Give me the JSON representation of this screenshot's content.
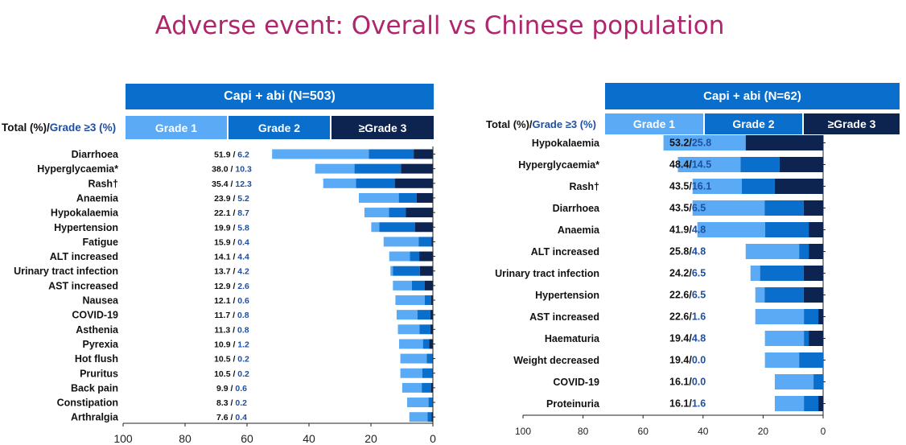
{
  "title": "Adverse event: Overall vs Chinese population",
  "colors": {
    "title": "#b0256e",
    "header_main": "#0a6fcc",
    "grade1": "#5aaaf5",
    "grade2": "#0a6fcc",
    "grade3": "#0d2450",
    "grade3_text": "#1f4fa3"
  },
  "left": {
    "header": "Capi + abi (N=503)",
    "total_label_prefix": "Total (%)/",
    "total_label_suffix": "Grade ≥3 (%)",
    "grade_labels": [
      "Grade 1",
      "Grade 2",
      "≥Grade 3"
    ]
  },
  "right": {
    "header": "Capi + abi (N=62)",
    "total_label_prefix": "Total (%)/",
    "total_label_suffix": "Grade ≥3 (%)",
    "grade_labels": [
      "Grade 1",
      "Grade 2",
      "≥Grade 3"
    ]
  },
  "chart_data": [
    {
      "type": "bar",
      "orientation": "horizontal-reversed",
      "title": "Capi + abi (N=503)",
      "xlim": [
        100,
        0
      ],
      "xticks": [
        "100",
        "80",
        "60",
        "40",
        "20",
        "0"
      ],
      "series": [
        {
          "name": "Grade 1"
        },
        {
          "name": "Grade 2"
        },
        {
          "name": "≥Grade 3"
        }
      ],
      "rows": [
        {
          "label": "Diarrhoea",
          "total": "51.9",
          "g3plus": "6.2",
          "t": 51.9,
          "g2": 14.5,
          "g3": 6.2
        },
        {
          "label": "Hyperglycaemia*",
          "total": "38.0",
          "g3plus": "10.3",
          "t": 38.0,
          "g2": 15.0,
          "g3": 10.3
        },
        {
          "label": "Rash†",
          "total": "35.4",
          "g3plus": "12.3",
          "t": 35.4,
          "g2": 12.5,
          "g3": 12.3
        },
        {
          "label": "Anaemia",
          "total": "23.9",
          "g3plus": "5.2",
          "t": 23.9,
          "g2": 5.8,
          "g3": 5.2
        },
        {
          "label": "Hypokalaemia",
          "total": "22.1",
          "g3plus": "8.7",
          "t": 22.1,
          "g2": 5.5,
          "g3": 8.7
        },
        {
          "label": "Hypertension",
          "total": "19.9",
          "g3plus": "5.8",
          "t": 19.9,
          "g2": 11.5,
          "g3": 5.8
        },
        {
          "label": "Fatigue",
          "total": "15.9",
          "g3plus": "0.4",
          "t": 15.9,
          "g2": 4.2,
          "g3": 0.4
        },
        {
          "label": "ALT increased",
          "total": "14.1",
          "g3plus": "4.4",
          "t": 14.1,
          "g2": 3.0,
          "g3": 4.4
        },
        {
          "label": "Urinary tract infection",
          "total": "13.7",
          "g3plus": "4.2",
          "t": 13.7,
          "g2": 8.7,
          "g3": 4.2
        },
        {
          "label": "AST increased",
          "total": "12.9",
          "g3plus": "2.6",
          "t": 12.9,
          "g2": 4.2,
          "g3": 2.6
        },
        {
          "label": "Nausea",
          "total": "12.1",
          "g3plus": "0.6",
          "t": 12.1,
          "g2": 2.0,
          "g3": 0.6
        },
        {
          "label": "COVID-19",
          "total": "11.7",
          "g3plus": "0.8",
          "t": 11.7,
          "g2": 4.2,
          "g3": 0.8
        },
        {
          "label": "Asthenia",
          "total": "11.3",
          "g3plus": "0.8",
          "t": 11.3,
          "g2": 3.5,
          "g3": 0.8
        },
        {
          "label": "Pyrexia",
          "total": "10.9",
          "g3plus": "1.2",
          "t": 10.9,
          "g2": 2.0,
          "g3": 1.2
        },
        {
          "label": "Hot flush",
          "total": "10.5",
          "g3plus": "0.2",
          "t": 10.5,
          "g2": 1.8,
          "g3": 0.2
        },
        {
          "label": "Pruritus",
          "total": "10.5",
          "g3plus": "0.2",
          "t": 10.5,
          "g2": 3.2,
          "g3": 0.2
        },
        {
          "label": "Back pain",
          "total": "9.9",
          "g3plus": "0.6",
          "t": 9.9,
          "g2": 3.0,
          "g3": 0.6
        },
        {
          "label": "Constipation",
          "total": "8.3",
          "g3plus": "0.2",
          "t": 8.3,
          "g2": 1.2,
          "g3": 0.2
        },
        {
          "label": "Arthralgia",
          "total": "7.6",
          "g3plus": "0.4",
          "t": 7.6,
          "g2": 1.3,
          "g3": 0.4
        }
      ]
    },
    {
      "type": "bar",
      "orientation": "horizontal-reversed",
      "title": "Capi + abi (N=62)",
      "xlim": [
        100,
        0
      ],
      "xticks": [
        "100",
        "80",
        "60",
        "40",
        "20",
        "0"
      ],
      "series": [
        {
          "name": "Grade 1"
        },
        {
          "name": "Grade 2"
        },
        {
          "name": "≥Grade 3"
        }
      ],
      "rows": [
        {
          "label": "Hypokalaemia",
          "total": "53.2",
          "g3plus": "25.8",
          "t": 53.2,
          "g2": 0.0,
          "g3": 25.8
        },
        {
          "label": "Hyperglycaemia*",
          "total": "48.4",
          "g3plus": "14.5",
          "t": 48.4,
          "g2": 13.0,
          "g3": 14.5
        },
        {
          "label": "Rash†",
          "total": "43.5",
          "g3plus": "16.1",
          "t": 43.5,
          "g2": 11.0,
          "g3": 16.1
        },
        {
          "label": "Diarrhoea",
          "total": "43.5",
          "g3plus": "6.5",
          "t": 43.5,
          "g2": 13.0,
          "g3": 6.5
        },
        {
          "label": "Anaemia",
          "total": "41.9",
          "g3plus": "4.8",
          "t": 41.9,
          "g2": 14.5,
          "g3": 4.8
        },
        {
          "label": "ALT increased",
          "total": "25.8",
          "g3plus": "4.8",
          "t": 25.8,
          "g2": 3.2,
          "g3": 4.8
        },
        {
          "label": "Urinary tract infection",
          "total": "24.2",
          "g3plus": "6.5",
          "t": 24.2,
          "g2": 14.5,
          "g3": 6.5
        },
        {
          "label": "Hypertension",
          "total": "22.6",
          "g3plus": "6.5",
          "t": 22.6,
          "g2": 13.0,
          "g3": 6.5
        },
        {
          "label": "AST increased",
          "total": "22.6",
          "g3plus": "1.6",
          "t": 22.6,
          "g2": 4.8,
          "g3": 1.6
        },
        {
          "label": "Haematuria",
          "total": "19.4",
          "g3plus": "4.8",
          "t": 19.4,
          "g2": 1.6,
          "g3": 4.8
        },
        {
          "label": "Weight decreased",
          "total": "19.4",
          "g3plus": "0.0",
          "t": 19.4,
          "g2": 8.0,
          "g3": 0.0
        },
        {
          "label": "COVID-19",
          "total": "16.1",
          "g3plus": "0.0",
          "t": 16.1,
          "g2": 3.2,
          "g3": 0.0
        },
        {
          "label": "Proteinuria",
          "total": "16.1",
          "g3plus": "1.6",
          "t": 16.1,
          "g2": 4.8,
          "g3": 1.6
        }
      ]
    }
  ]
}
